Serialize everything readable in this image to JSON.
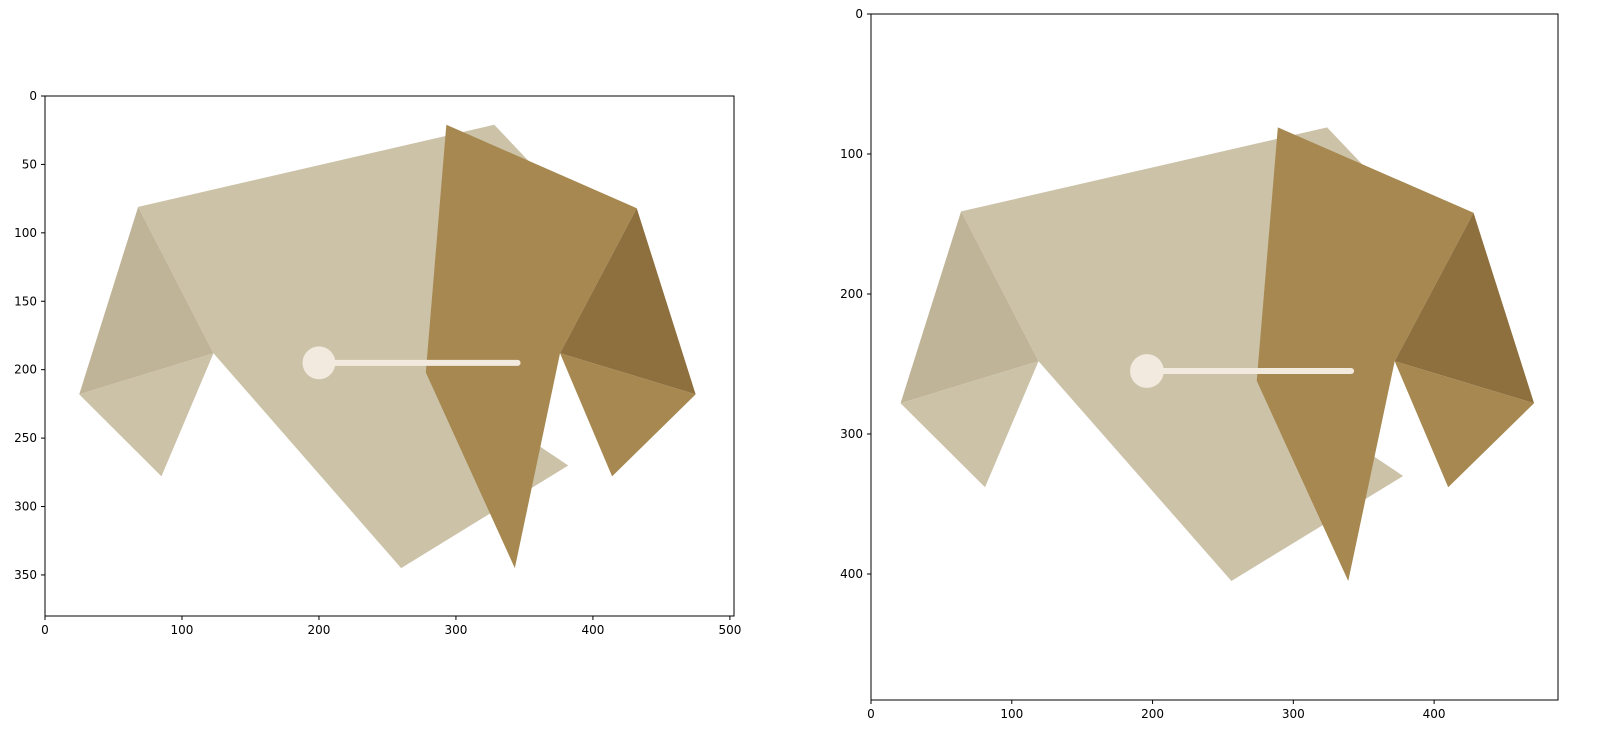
{
  "chart_data": [
    {
      "type": "image",
      "xlim": [
        0,
        503
      ],
      "ylim": [
        380,
        0
      ],
      "x_ticks": [
        0,
        100,
        200,
        300,
        400,
        500
      ],
      "y_ticks": [
        0,
        50,
        100,
        150,
        200,
        250,
        300,
        350
      ],
      "image_offset": [
        0,
        0
      ],
      "colors": {
        "light": "#ccc2a8",
        "light_shade": "#c0b498",
        "dark": "#a68850",
        "dark_shade": "#8e6f3e",
        "hand": "#f2eadf"
      }
    },
    {
      "type": "image",
      "xlim": [
        0,
        488
      ],
      "ylim": [
        490,
        0
      ],
      "x_ticks": [
        0,
        100,
        200,
        300,
        400
      ],
      "y_ticks": [
        0,
        100,
        200,
        300,
        400
      ],
      "image_offset": [
        -4,
        60
      ],
      "colors": {
        "light": "#ccc2a8",
        "light_shade": "#c0b498",
        "dark": "#a68850",
        "dark_shade": "#8e6f3e",
        "hand": "#f2eadf"
      }
    }
  ]
}
